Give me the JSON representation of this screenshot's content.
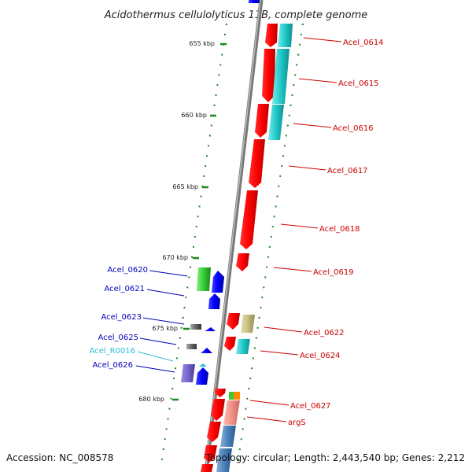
{
  "title": "Acidothermus cellulolyticus 11B, complete genome",
  "footer": {
    "accession": "Accession: NC_008578",
    "topology": "Topology: circular; Length: 2,443,540 bp; Genes: 2,212"
  },
  "scale_labels": [
    "655 kbp",
    "660 kbp",
    "665 kbp",
    "670 kbp",
    "675 kbp",
    "680 kbp"
  ],
  "colors": {
    "right_label": "#cc0000",
    "left_label": "#0000bb",
    "rna_label": "#33bbdd",
    "cds_fwd": "#ff0000",
    "cds_rev": "#0000ff",
    "teal": "#20c8c8",
    "green": "#33cc33",
    "olive": "#c8c080",
    "purple": "#7766cc",
    "gray": "#666666"
  },
  "right_genes": [
    "Acel_0614",
    "Acel_0615",
    "Acel_0616",
    "Acel_0617",
    "Acel_0618",
    "Acel_0619",
    "Acel_0622",
    "Acel_0624",
    "Acel_0627",
    "argS"
  ],
  "left_genes": [
    "Acel_0620",
    "Acel_0621",
    "Acel_0623",
    "Acel_0625",
    "Acel_R0016",
    "Acel_0626"
  ]
}
